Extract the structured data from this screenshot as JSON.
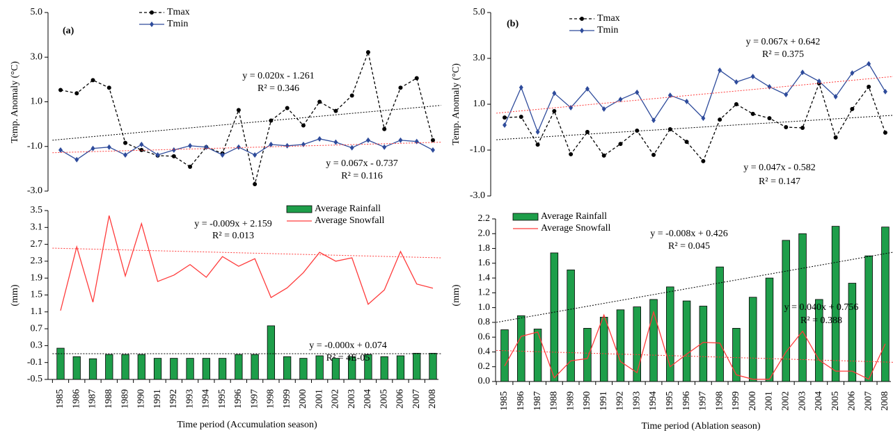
{
  "chart_data": [
    {
      "type": "line",
      "panel_label": "(a)",
      "ylabel": "Temp. Anomaly (°C)",
      "ylim": [
        -3,
        5
      ],
      "yticks": [
        {
          "value": -3,
          "label": "-3.0"
        },
        {
          "value": -1,
          "label": "-1.0"
        },
        {
          "value": 1,
          "label": "1.0"
        },
        {
          "value": 3,
          "label": "3.0"
        },
        {
          "value": 5,
          "label": "5.0"
        }
      ],
      "series": [
        {
          "name": "Tmax",
          "color": "#000000",
          "dash": "4,3",
          "marker": "circle",
          "values": [
            1.53,
            1.38,
            1.97,
            1.63,
            -0.84,
            -1.16,
            -1.41,
            -1.44,
            -1.91,
            -1.03,
            -1.31,
            0.63,
            -2.69,
            0.16,
            0.72,
            -0.06,
            1.0,
            0.59,
            1.28,
            3.22,
            -0.22,
            1.63,
            2.06,
            -0.72
          ]
        },
        {
          "name": "Tmin",
          "color": "#2e4b9b",
          "marker": "diamond",
          "values": [
            -1.16,
            -1.59,
            -1.09,
            -1.03,
            -1.38,
            -0.91,
            -1.38,
            -1.16,
            -0.97,
            -1.03,
            -1.38,
            -1.03,
            -1.38,
            -0.91,
            -0.97,
            -0.91,
            -0.66,
            -0.81,
            -1.06,
            -0.72,
            -1.03,
            -0.72,
            -0.78,
            -1.16
          ]
        }
      ],
      "trend_lines": [
        {
          "color": "#000000",
          "values": [
            -0.72,
            0.84
          ]
        },
        {
          "color": "#ff3b3b",
          "values": [
            -1.28,
            -0.81
          ]
        }
      ],
      "annotations": [
        "y = 0.020x - 1.261",
        "R² = 0.346",
        "y = 0.067x - 0.737",
        "R² = 0.116"
      ]
    },
    {
      "type": "combo",
      "ylabel": "(mm)",
      "xlabel": "Time period (Accumulation season)",
      "categories": [
        "1985",
        "1986",
        "1987",
        "1988",
        "1989",
        "1990",
        "1991",
        "1992",
        "1993",
        "1994",
        "1995",
        "1996",
        "1997",
        "1998",
        "1999",
        "2000",
        "2001",
        "2002",
        "2003",
        "2004",
        "2005",
        "2006",
        "2007",
        "2008"
      ],
      "ylim": [
        -0.5,
        3.5
      ],
      "yticks": [
        -0.5,
        -0.1,
        0.3,
        0.7,
        1.1,
        1.5,
        1.9,
        2.3,
        2.7,
        3.1,
        3.5
      ],
      "series": [
        {
          "name": "Average Rainfall",
          "kind": "bar",
          "color": "#1e9e4a",
          "values": [
            0.24,
            0.04,
            -0.01,
            0.09,
            0.09,
            0.09,
            0.0,
            0.0,
            0.0,
            0.0,
            0.0,
            0.09,
            0.09,
            0.77,
            0.04,
            0.0,
            0.06,
            0.0,
            0.04,
            0.09,
            0.04,
            0.06,
            0.12,
            0.12
          ]
        },
        {
          "name": "Average Snowfall",
          "kind": "line",
          "color": "#ff3b3b",
          "values": [
            1.13,
            2.64,
            1.33,
            3.38,
            1.95,
            3.19,
            1.82,
            1.97,
            2.22,
            1.92,
            2.41,
            2.18,
            2.36,
            1.44,
            1.67,
            2.03,
            2.51,
            2.3,
            2.38,
            1.28,
            1.62,
            2.53,
            1.76,
            1.66
          ]
        }
      ],
      "trend_lines": [
        {
          "color": "#ff3b3b",
          "values": [
            2.61,
            2.38
          ]
        },
        {
          "color": "#000000",
          "values": [
            0.11,
            0.11
          ]
        }
      ],
      "annotations": [
        "y = -0.009x + 2.159",
        "R² = 0.013",
        "y = -0.000x + 0.074",
        "R² = 4E-05"
      ]
    },
    {
      "type": "line",
      "panel_label": "(b)",
      "ylabel": "Temp. Anomaly (°C)",
      "ylim": [
        -3,
        5
      ],
      "yticks": [
        {
          "value": -3,
          "label": "-3.0"
        },
        {
          "value": -1,
          "label": "-1.0"
        },
        {
          "value": 1,
          "label": "1.0"
        },
        {
          "value": 3,
          "label": "3.0"
        },
        {
          "value": 5,
          "label": "5.0"
        }
      ],
      "series": [
        {
          "name": "Tmax",
          "color": "#000000",
          "dash": "4,3",
          "marker": "circle",
          "values": [
            0.42,
            0.45,
            -0.76,
            0.7,
            -1.18,
            -0.21,
            -1.24,
            -0.73,
            -0.15,
            -1.21,
            -0.09,
            -0.64,
            -1.48,
            0.33,
            1.0,
            0.58,
            0.39,
            0.0,
            -0.03,
            1.91,
            -0.45,
            0.79,
            1.76,
            -0.24
          ]
        },
        {
          "name": "Tmin",
          "color": "#2e4b9b",
          "marker": "diamond",
          "values": [
            0.09,
            1.73,
            -0.21,
            1.48,
            0.85,
            1.67,
            0.79,
            1.21,
            1.52,
            0.3,
            1.39,
            1.12,
            0.39,
            2.48,
            1.97,
            2.21,
            1.76,
            1.42,
            2.39,
            2.0,
            1.33,
            2.36,
            2.76,
            1.55
          ]
        }
      ],
      "trend_lines": [
        {
          "color": "#000000",
          "values": [
            -0.55,
            0.52
          ]
        },
        {
          "color": "#ff3b3b",
          "values": [
            0.61,
            2.21
          ]
        }
      ],
      "annotations": [
        "y = 0.067x + 0.642",
        "R² = 0.375",
        "y = 0.047x - 0.582",
        "R² = 0.147"
      ]
    },
    {
      "type": "combo",
      "ylabel": "(mm)",
      "xlabel": "Time period (Ablation season)",
      "categories": [
        "1985",
        "1986",
        "1987",
        "1988",
        "1989",
        "1990",
        "1991",
        "1992",
        "1993",
        "1994",
        "1995",
        "1996",
        "1997",
        "1998",
        "1999",
        "2000",
        "2001",
        "2002",
        "2003",
        "2004",
        "2005",
        "2006",
        "2007",
        "2008"
      ],
      "ylim": [
        0,
        2.2
      ],
      "yticks": [
        {
          "value": 0,
          "label": "0.0"
        },
        0.2,
        0.4,
        0.6,
        0.8,
        {
          "value": 1,
          "label": "1.0"
        },
        1.2,
        1.4,
        1.6,
        1.8,
        {
          "value": 2,
          "label": "2.0"
        },
        2.2
      ],
      "series": [
        {
          "name": "Average Rainfall",
          "kind": "bar",
          "color": "#1e9e4a",
          "values": [
            0.7,
            0.89,
            0.71,
            1.74,
            1.51,
            0.72,
            0.87,
            0.97,
            1.01,
            1.11,
            1.28,
            1.09,
            1.02,
            1.55,
            0.72,
            1.14,
            1.4,
            1.91,
            2.0,
            1.11,
            2.1,
            1.33,
            1.7,
            2.09
          ]
        },
        {
          "name": "Average Snowfall",
          "kind": "line",
          "color": "#ff3b3b",
          "values": [
            0.21,
            0.61,
            0.67,
            0.05,
            0.28,
            0.31,
            0.9,
            0.27,
            0.12,
            0.94,
            0.2,
            0.37,
            0.53,
            0.52,
            0.09,
            0.03,
            0.03,
            0.4,
            0.68,
            0.29,
            0.14,
            0.14,
            0.03,
            0.51
          ]
        }
      ],
      "trend_lines": [
        {
          "color": "#000000",
          "values": [
            0.8,
            1.75
          ]
        },
        {
          "color": "#ff3b3b",
          "values": [
            0.42,
            0.26
          ]
        }
      ],
      "annotations": [
        "y = -0.008x + 0.426",
        "R² = 0.045",
        "y = 0.040x + 0.756",
        "R² = 0.388"
      ]
    }
  ]
}
